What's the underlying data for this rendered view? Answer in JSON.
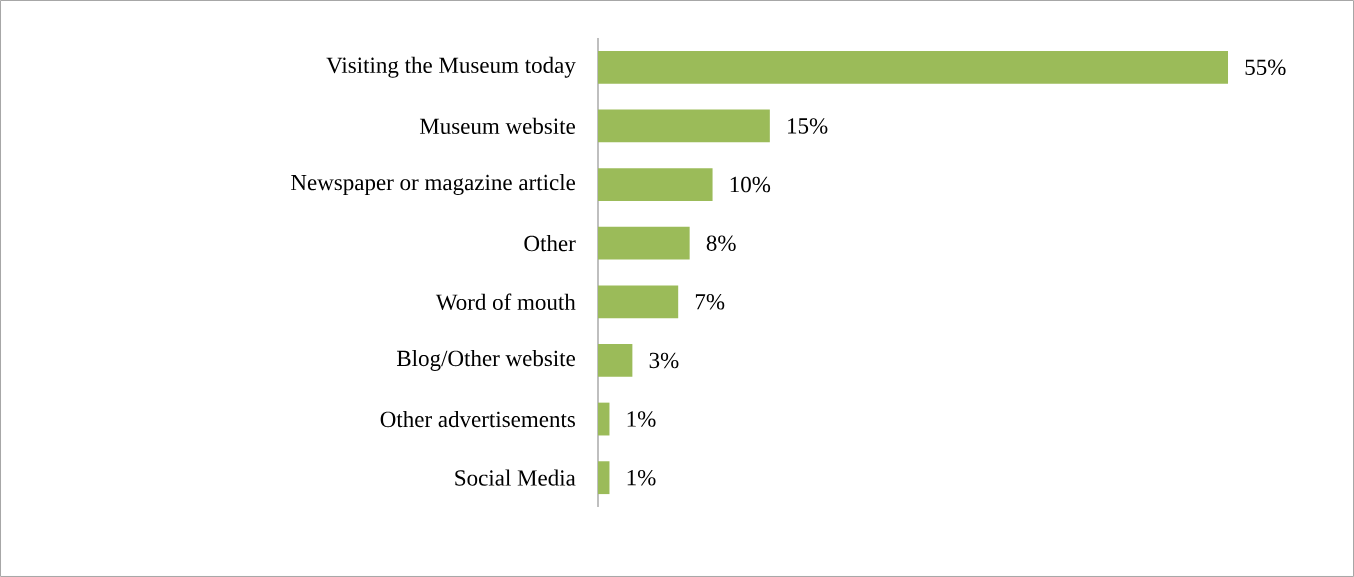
{
  "chart_data": {
    "type": "bar",
    "orientation": "horizontal",
    "color": "#9bbb59",
    "categories": [
      "Visiting the Museum today",
      "Museum website",
      "Newspaper or magazine article",
      "Other",
      "Word of mouth",
      "Blog/Other website",
      "Other advertisements",
      "Social Media"
    ],
    "values": [
      55,
      15,
      10,
      8,
      7,
      3,
      1,
      1
    ],
    "value_labels": [
      "55%",
      "15%",
      "10%",
      "8%",
      "7%",
      "3%",
      "1%",
      "1%"
    ]
  }
}
